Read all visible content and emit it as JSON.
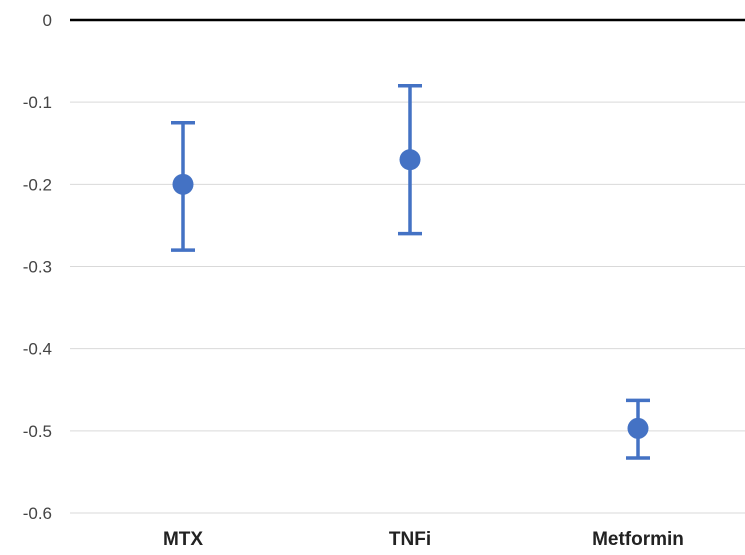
{
  "chart_data": {
    "type": "scatter",
    "title": "",
    "xlabel": "",
    "ylabel": "",
    "categories": [
      "MTX",
      "TNFi",
      "Metformin"
    ],
    "points": [
      {
        "category": "MTX",
        "value": -0.2,
        "lower": -0.28,
        "upper": -0.125
      },
      {
        "category": "TNFi",
        "value": -0.17,
        "lower": -0.26,
        "upper": -0.08
      },
      {
        "category": "Metformin",
        "value": -0.497,
        "lower": -0.533,
        "upper": -0.463
      }
    ],
    "yticks": [
      {
        "value": 0,
        "label": "0"
      },
      {
        "value": -0.1,
        "label": "-0.1"
      },
      {
        "value": -0.2,
        "label": "-0.2"
      },
      {
        "value": -0.3,
        "label": "-0.3"
      },
      {
        "value": -0.4,
        "label": "-0.4"
      },
      {
        "value": -0.5,
        "label": "-0.5"
      },
      {
        "value": -0.6,
        "label": "-0.6"
      }
    ],
    "ylim": [
      -0.6,
      0
    ],
    "grid": true,
    "error_bars": true,
    "colors": {
      "marker": "#4472C4",
      "grid": "#d9d9d9",
      "zero_line": "#000000"
    }
  }
}
